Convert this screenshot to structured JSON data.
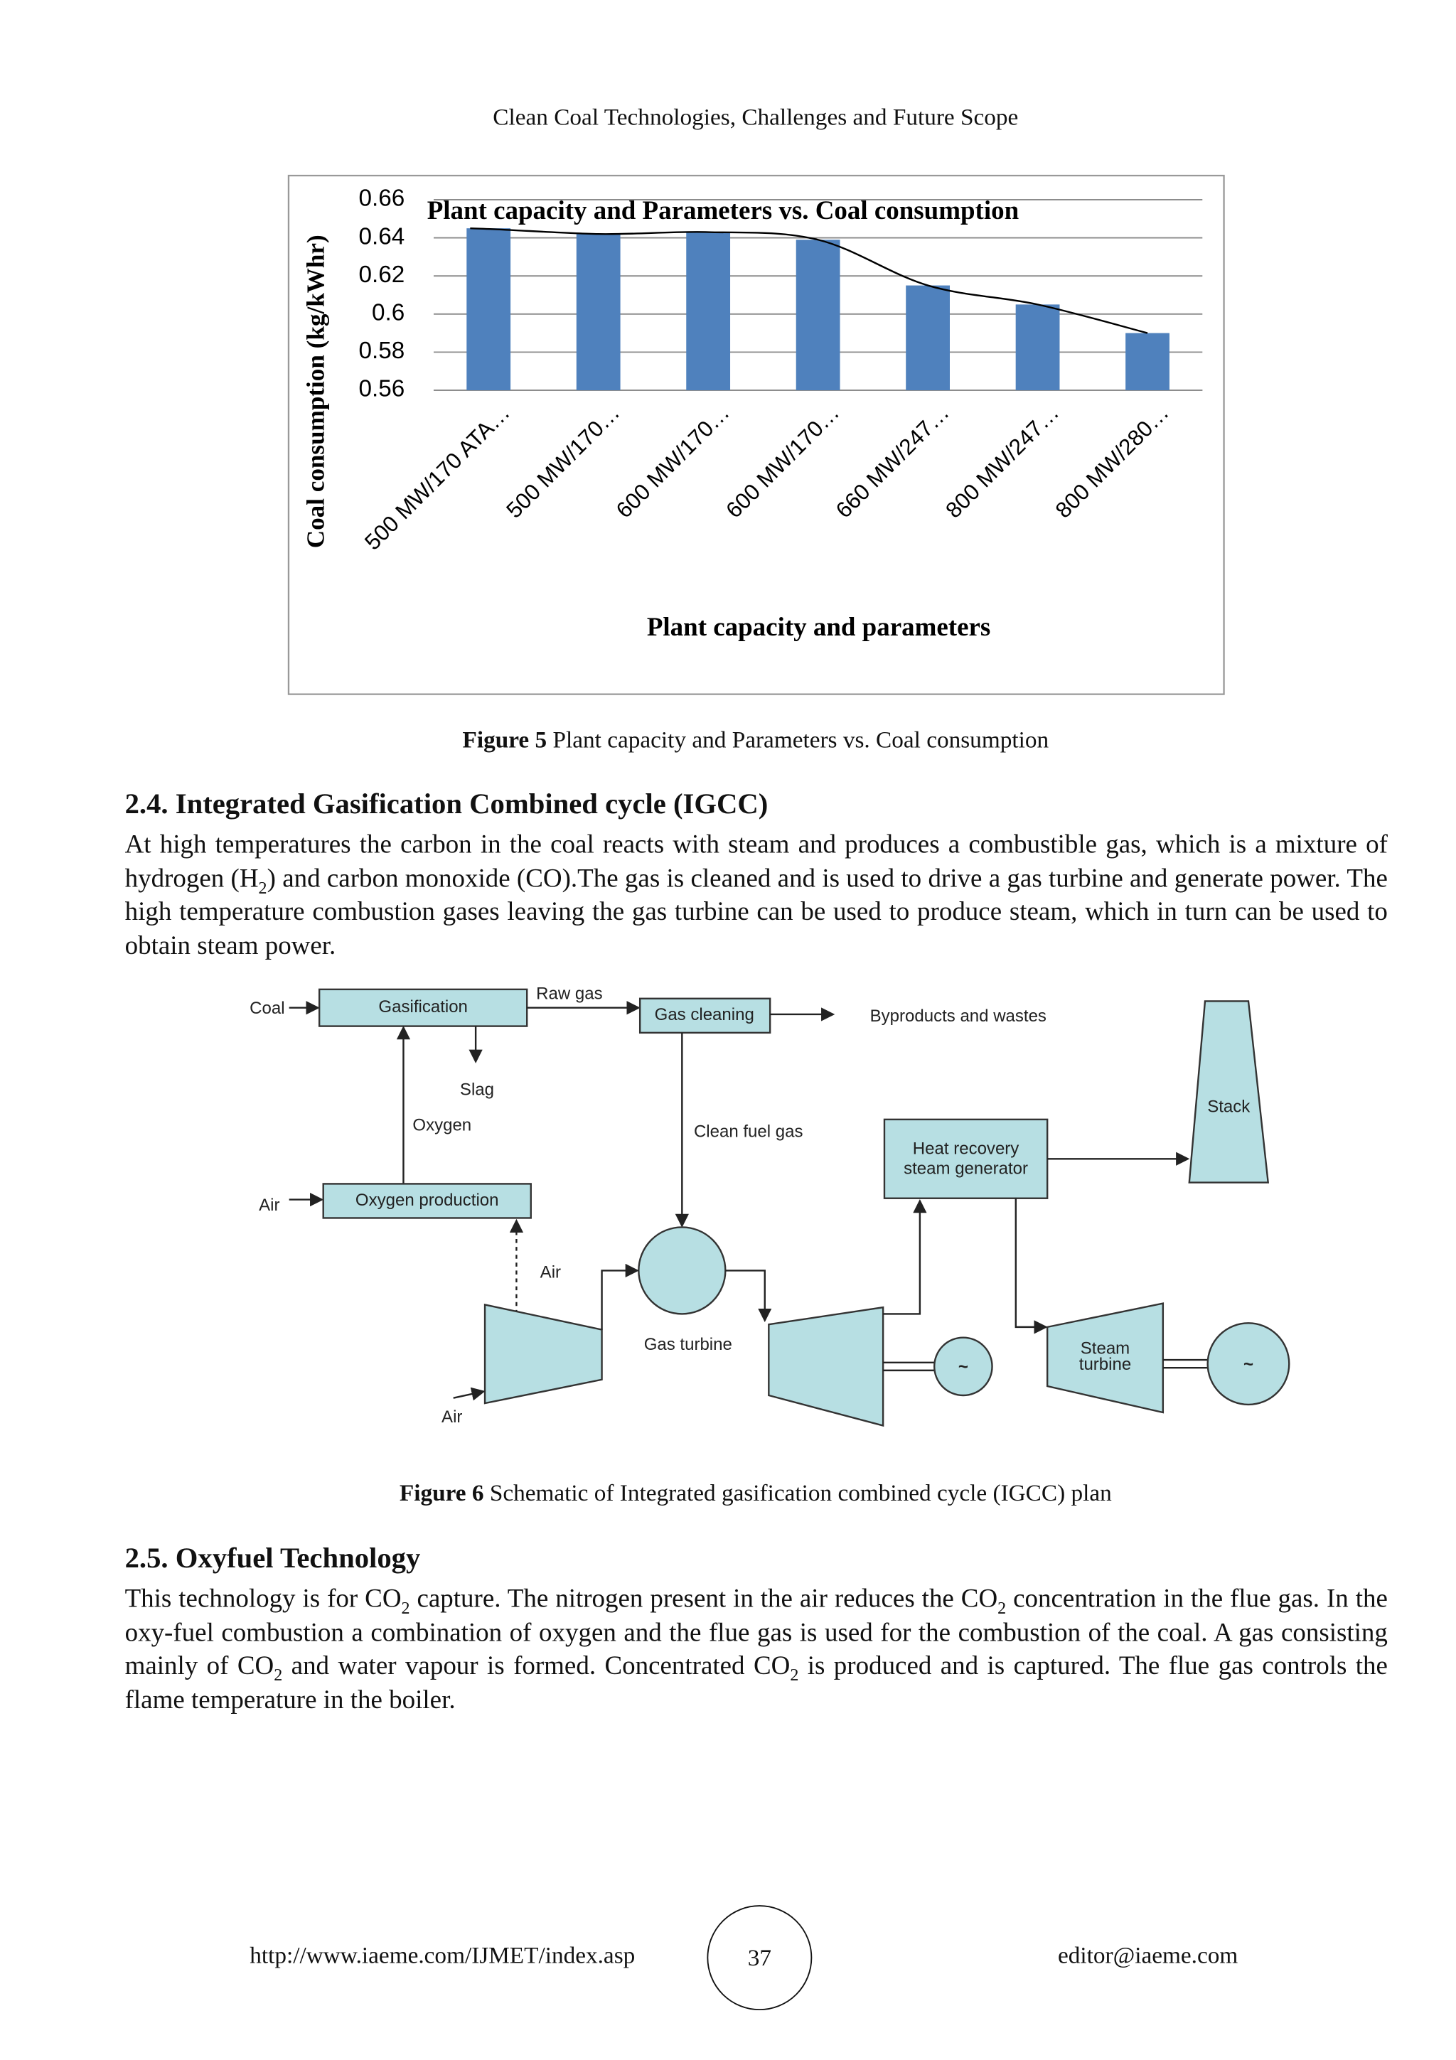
{
  "header": {
    "title": "Clean Coal Technologies, Challenges and Future Scope"
  },
  "chart_data": {
    "type": "bar",
    "title": "Plant capacity and Parameters vs. Coal consumption",
    "x_label": "Plant capacity and parameters",
    "y_label": "Coal consumption (kg/kWhr)",
    "categories": [
      "500 MW/170 ATA…",
      "500 MW/170…",
      "600 MW/170…",
      "600 MW/170…",
      "660 MW/247…",
      "800 MW/247…",
      "800 MW/280…"
    ],
    "values": [
      0.645,
      0.642,
      0.643,
      0.639,
      0.615,
      0.605,
      0.59
    ],
    "color": "#4f81bd",
    "trendline": true,
    "ylim": [
      0.56,
      0.66
    ],
    "yticks": [
      0.56,
      0.58,
      0.6,
      0.62,
      0.64,
      0.66
    ],
    "grid": true
  },
  "figures": [
    {
      "label": "Figure 5",
      "caption": "Plant capacity and Parameters vs. Coal consumption"
    },
    {
      "label": "Figure 6",
      "caption": "Schematic of Integrated gasification combined cycle (IGCC) plan"
    }
  ],
  "sections": [
    {
      "heading": "2.4. Integrated Gasification Combined cycle (IGCC)",
      "body": [
        "At high temperatures the carbon in the coal reacts with steam and produces a combustible gas, which is a mixture of hydrogen (H",
        "2",
        ") and carbon monoxide (CO).The gas is cleaned and is used to drive a gas turbine and generate power. The high temperature combustion gases leaving the gas turbine can be used to produce steam, which in turn can be used to obtain steam power."
      ]
    },
    {
      "heading": "2.5. Oxyfuel Technology",
      "body": [
        "This technology is for CO",
        "2",
        " capture. The nitrogen present in the air reduces the CO",
        "2",
        " concentration in the flue gas. In the oxy-fuel combustion a combination of oxygen and the flue gas is used for the combustion of the coal. A gas consisting mainly of CO",
        "2",
        " and water vapour is formed. Concentrated CO",
        "2",
        " is produced and is captured. The flue gas controls the flame temperature in the boiler."
      ]
    }
  ],
  "diagram": {
    "coal": "Coal",
    "gasification": "Gasification",
    "raw_gas": "Raw gas",
    "gas_cleaning": "Gas cleaning",
    "byproducts": "Byproducts and wastes",
    "slag": "Slag",
    "oxygen": "Oxygen",
    "clean_fuel_gas": "Clean fuel gas",
    "heat_recovery": [
      "Heat recovery",
      "steam generator"
    ],
    "stack": "Stack",
    "air_top": "Air",
    "oxygen_production": "Oxygen production",
    "air_mid": "Air",
    "gas_turbine": "Gas turbine",
    "air_bottom": "Air",
    "steam_turbine": [
      "Steam",
      "turbine"
    ],
    "generator_1": "~",
    "generator_2": "~"
  },
  "footer": {
    "url": "http://www.iaeme.com/IJMET/index.asp",
    "page": "37",
    "email": "editor@iaeme.com"
  }
}
